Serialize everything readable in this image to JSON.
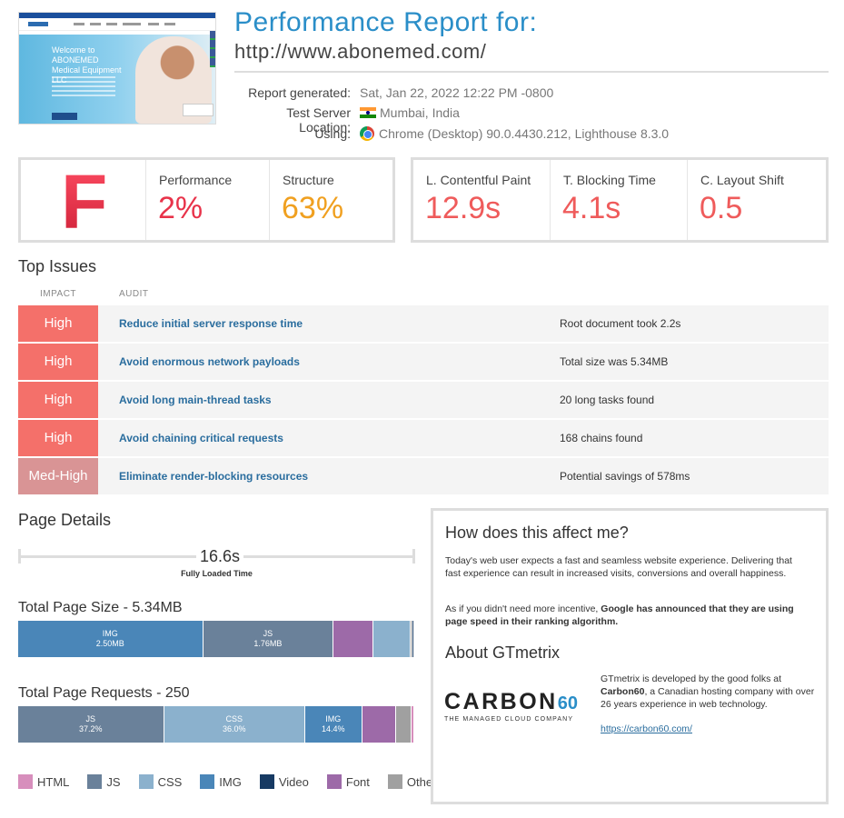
{
  "header": {
    "title": "Performance Report for:",
    "url": "http://www.abonemed.com/",
    "thumbnail_text": "Welcome to ABONEMED Medical Equipment LLC",
    "report_generated_label": "Report generated:",
    "report_generated_value": "Sat, Jan 22, 2022 12:22 PM -0800",
    "server_label": "Test Server Location:",
    "server_value": "Mumbai, India",
    "using_label": "Using:",
    "using_value": "Chrome (Desktop) 90.0.4430.212, Lighthouse 8.3.0"
  },
  "scores": {
    "grade": "F",
    "performance_label": "Performance",
    "performance_value": "2%",
    "structure_label": "Structure",
    "structure_value": "63%",
    "lcp_label": "L. Contentful Paint",
    "lcp_value": "12.9s",
    "tbt_label": "T. Blocking Time",
    "tbt_value": "4.1s",
    "cls_label": "C. Layout Shift",
    "cls_value": "0.5"
  },
  "top_issues": {
    "heading": "Top Issues",
    "col_impact": "IMPACT",
    "col_audit": "AUDIT",
    "rows": [
      {
        "impact": "High",
        "audit": "Reduce initial server response time",
        "detail": "Root document took 2.2s"
      },
      {
        "impact": "High",
        "audit": "Avoid enormous network payloads",
        "detail": "Total size was 5.34MB"
      },
      {
        "impact": "High",
        "audit": "Avoid long main-thread tasks",
        "detail": "20 long tasks found"
      },
      {
        "impact": "High",
        "audit": "Avoid chaining critical requests",
        "detail": "168 chains found"
      },
      {
        "impact": "Med-High",
        "audit": "Eliminate render-blocking resources",
        "detail": "Potential savings of 578ms"
      }
    ]
  },
  "page_details": {
    "heading": "Page Details",
    "fully_loaded_value": "16.6s",
    "fully_loaded_label": "Fully Loaded Time",
    "size_heading": "Total Page Size - 5.34MB",
    "size_segments": [
      {
        "type": "IMG",
        "value": "2.50MB",
        "share": 0.468
      },
      {
        "type": "JS",
        "value": "1.76MB",
        "share": 0.33
      },
      {
        "type": "Font",
        "value": "",
        "share": 0.1
      },
      {
        "type": "CSS",
        "value": "",
        "share": 0.094
      },
      {
        "type": "Other",
        "value": "",
        "share": 0.004
      },
      {
        "type": "Video",
        "value": "",
        "share": 0.004
      }
    ],
    "requests_heading": "Total Page Requests - 250",
    "request_segments": [
      {
        "type": "JS",
        "value": "37.2%",
        "share": 0.372
      },
      {
        "type": "CSS",
        "value": "36.0%",
        "share": 0.36
      },
      {
        "type": "IMG",
        "value": "14.4%",
        "share": 0.144
      },
      {
        "type": "Font",
        "value": "",
        "share": 0.088
      },
      {
        "type": "Other",
        "value": "",
        "share": 0.04
      },
      {
        "type": "HTML",
        "value": "",
        "share": 0.008
      }
    ],
    "legend": [
      {
        "label": "HTML",
        "color": "#d78ebc"
      },
      {
        "label": "JS",
        "color": "#6a819a"
      },
      {
        "label": "CSS",
        "color": "#8bb1cd"
      },
      {
        "label": "IMG",
        "color": "#4a86b8"
      },
      {
        "label": "Video",
        "color": "#173a63"
      },
      {
        "label": "Font",
        "color": "#9d6aa8"
      },
      {
        "label": "Other",
        "color": "#a0a0a0"
      }
    ]
  },
  "info": {
    "affect_heading": "How does this affect me?",
    "affect_p1": "Today's web user expects a fast and seamless website experience. Delivering that fast experience can result in increased visits, conversions and overall happiness.",
    "affect_p2_a": "As if you didn't need more incentive, ",
    "affect_p2_b": "Google has announced that they are using page speed in their ranking algorithm.",
    "about_heading": "About GTmetrix",
    "carbon_word": "CARBON",
    "carbon_num": "60",
    "carbon_tagline": "THE MANAGED CLOUD COMPANY",
    "about_p_a": "GTmetrix is developed by the good folks at ",
    "about_p_b": "Carbon60",
    "about_p_c": ", a Canadian hosting company with over 26 years experience in web technology.",
    "about_link": "https://carbon60.com/"
  },
  "colors": {
    "accent": "#2a8ec8",
    "high": "#f4706a",
    "med_high": "#d99495",
    "performance": "#e8334a",
    "structure": "#f0a020",
    "metric": "#ef5b5b"
  }
}
